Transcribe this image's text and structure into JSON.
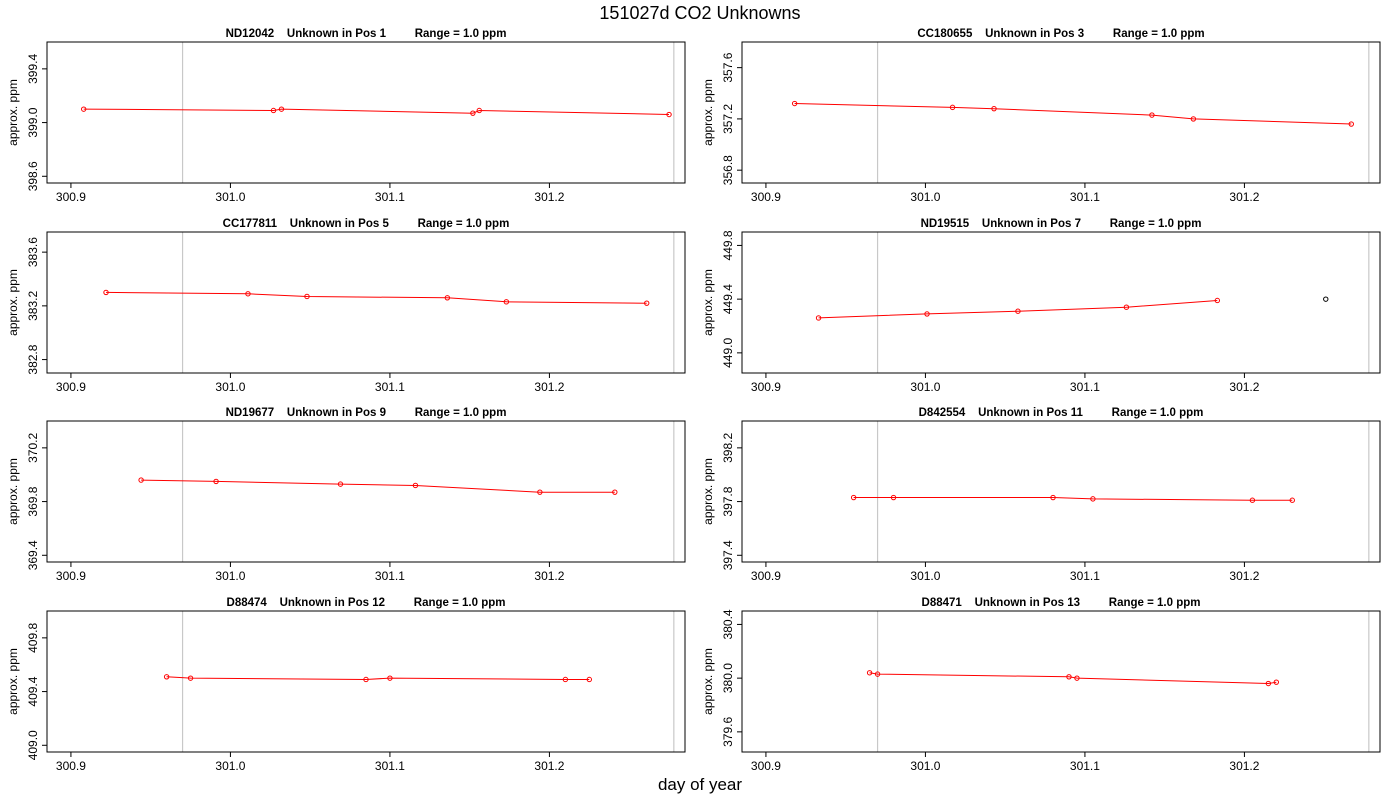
{
  "title": "151027d  CO2 Unknowns",
  "xlabel": "day of year",
  "colors": {
    "series": "#ff0000",
    "flagged": "#000000",
    "vline": "#c8c8c8",
    "axis": "#000000"
  },
  "chart_data": [
    {
      "type": "line",
      "id": "ND12042",
      "pos": "Pos 1",
      "title": "ND12042    Unknown in Pos 1         Range = 1.0 ppm",
      "xlabel": "",
      "ylabel": "approx. ppm",
      "xlim": [
        300.885,
        301.285
      ],
      "ylim": [
        398.55,
        399.6
      ],
      "xticks": [
        "300.9",
        "301.0",
        "301.1",
        "301.2"
      ],
      "yticks": [
        "398.6",
        "399.0",
        "399.4"
      ],
      "vlines": [
        300.97,
        301.278
      ],
      "x": [
        300.908,
        301.027,
        301.032,
        301.152,
        301.156,
        301.275
      ],
      "y": [
        399.1,
        399.09,
        399.1,
        399.07,
        399.09,
        399.06
      ]
    },
    {
      "type": "line",
      "id": "CC180655",
      "pos": "Pos 3",
      "title": "CC180655    Unknown in Pos 3         Range = 1.0 ppm",
      "xlabel": "",
      "ylabel": "approx. ppm",
      "xlim": [
        300.885,
        301.285
      ],
      "ylim": [
        356.7,
        357.8
      ],
      "xticks": [
        "300.9",
        "301.0",
        "301.1",
        "301.2"
      ],
      "yticks": [
        "356.8",
        "357.2",
        "357.6"
      ],
      "vlines": [
        300.97,
        301.278
      ],
      "x": [
        300.918,
        301.017,
        301.043,
        301.142,
        301.168,
        301.267
      ],
      "y": [
        357.32,
        357.29,
        357.28,
        357.23,
        357.2,
        357.16
      ]
    },
    {
      "type": "line",
      "id": "CC177811",
      "pos": "Pos 5",
      "title": "CC177811    Unknown in Pos 5         Range = 1.0 ppm",
      "xlabel": "",
      "ylabel": "approx. ppm",
      "xlim": [
        300.885,
        301.285
      ],
      "ylim": [
        382.7,
        383.75
      ],
      "xticks": [
        "300.9",
        "301.0",
        "301.1",
        "301.2"
      ],
      "yticks": [
        "382.8",
        "383.2",
        "383.6"
      ],
      "vlines": [
        300.97,
        301.278
      ],
      "x": [
        300.922,
        301.011,
        301.048,
        301.136,
        301.173,
        301.261
      ],
      "y": [
        383.3,
        383.29,
        383.27,
        383.26,
        383.23,
        383.22
      ]
    },
    {
      "type": "line",
      "id": "ND19515",
      "pos": "Pos 7",
      "title": "ND19515    Unknown in Pos 7         Range = 1.0 ppm",
      "xlabel": "",
      "ylabel": "approx. ppm",
      "xlim": [
        300.885,
        301.285
      ],
      "ylim": [
        448.85,
        449.9
      ],
      "xticks": [
        "300.9",
        "301.0",
        "301.1",
        "301.2"
      ],
      "yticks": [
        "449.0",
        "449.4",
        "449.8"
      ],
      "vlines": [
        300.97,
        301.278
      ],
      "x": [
        300.933,
        301.001,
        301.058,
        301.126,
        301.183
      ],
      "y": [
        449.26,
        449.29,
        449.31,
        449.34,
        449.39
      ],
      "flagged_x": [
        301.251
      ],
      "flagged_y": [
        449.4
      ]
    },
    {
      "type": "line",
      "id": "ND19677",
      "pos": "Pos 9",
      "title": "ND19677    Unknown in Pos 9         Range = 1.0 ppm",
      "xlabel": "",
      "ylabel": "approx. ppm",
      "xlim": [
        300.885,
        301.285
      ],
      "ylim": [
        369.35,
        370.4
      ],
      "xticks": [
        "300.9",
        "301.0",
        "301.1",
        "301.2"
      ],
      "yticks": [
        "369.4",
        "369.8",
        "370.2"
      ],
      "vlines": [
        300.97,
        301.278
      ],
      "x": [
        300.944,
        300.991,
        301.069,
        301.116,
        301.194,
        301.241
      ],
      "y": [
        369.96,
        369.95,
        369.93,
        369.92,
        369.87,
        369.87
      ]
    },
    {
      "type": "line",
      "id": "D842554",
      "pos": "Pos 11",
      "title": "D842554    Unknown in Pos 11         Range = 1.0 ppm",
      "xlabel": "",
      "ylabel": "approx. ppm",
      "xlim": [
        300.885,
        301.285
      ],
      "ylim": [
        397.35,
        398.4
      ],
      "xticks": [
        "300.9",
        "301.0",
        "301.1",
        "301.2"
      ],
      "yticks": [
        "397.4",
        "397.8",
        "398.2"
      ],
      "vlines": [
        300.97,
        301.278
      ],
      "x": [
        300.955,
        300.98,
        301.08,
        301.105,
        301.205,
        301.23
      ],
      "y": [
        397.83,
        397.83,
        397.83,
        397.82,
        397.81,
        397.81
      ]
    },
    {
      "type": "line",
      "id": "D88474",
      "pos": "Pos 12",
      "title": "D88474    Unknown in Pos 12         Range = 1.0 ppm",
      "xlabel": "",
      "ylabel": "approx. ppm",
      "xlim": [
        300.885,
        301.285
      ],
      "ylim": [
        408.95,
        410.0
      ],
      "xticks": [
        "300.9",
        "301.0",
        "301.1",
        "301.2"
      ],
      "yticks": [
        "409.0",
        "409.4",
        "409.8"
      ],
      "vlines": [
        300.97,
        301.278
      ],
      "x": [
        300.96,
        300.975,
        301.085,
        301.1,
        301.21,
        301.225
      ],
      "y": [
        409.51,
        409.5,
        409.49,
        409.5,
        409.49,
        409.49
      ]
    },
    {
      "type": "line",
      "id": "D88471",
      "pos": "Pos 13",
      "title": "D88471    Unknown in Pos 13         Range = 1.0 ppm",
      "xlabel": "",
      "ylabel": "approx. ppm",
      "xlim": [
        300.885,
        301.285
      ],
      "ylim": [
        379.45,
        380.5
      ],
      "xticks": [
        "300.9",
        "301.0",
        "301.1",
        "301.2"
      ],
      "yticks": [
        "379.6",
        "380.0",
        "380.4"
      ],
      "vlines": [
        300.97,
        301.278
      ],
      "x": [
        300.965,
        300.97,
        301.09,
        301.095,
        301.215,
        301.22
      ],
      "y": [
        380.04,
        380.03,
        380.01,
        380.0,
        379.96,
        379.97
      ]
    }
  ]
}
